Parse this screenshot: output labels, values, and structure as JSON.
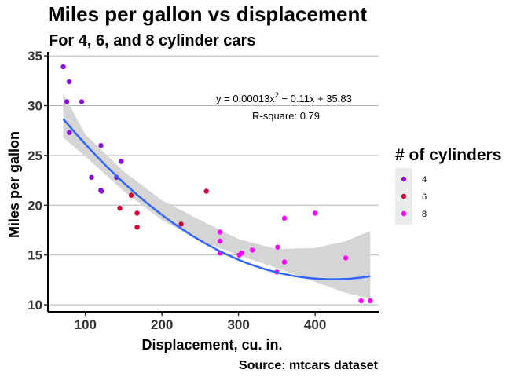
{
  "chart_data": {
    "type": "scatter",
    "title": "Miles per gallon vs displacement",
    "subtitle": "For 4, 6, and 8 cylinder cars",
    "xlabel": "Displacement, cu. in.",
    "ylabel": "Miles per gallon",
    "caption": "Source: mtcars dataset",
    "xlim": [
      51,
      483
    ],
    "ylim": [
      9.3,
      35.4
    ],
    "xticks": [
      100,
      200,
      300,
      400
    ],
    "yticks": [
      10,
      15,
      20,
      25,
      30,
      35
    ],
    "grid": "horizontal",
    "legend": {
      "title": "# of cylinders",
      "placement": "right",
      "entries": [
        {
          "label": "4",
          "color": "#8a0ee6"
        },
        {
          "label": "6",
          "color": "#cc0033"
        },
        {
          "label": "8",
          "color": "#ff00ff"
        }
      ]
    },
    "annotation": {
      "equation_plain": "y = 0.00013x² − 0.11x + 35.83",
      "r_square": "R-square: 0.79"
    },
    "fit": {
      "type": "quadratic",
      "a": 0.00013,
      "b": -0.11,
      "c": 35.83,
      "x_range": [
        71.1,
        472
      ],
      "color": "#3366ff",
      "band_color": "#d0d0d0",
      "band": [
        {
          "x": 71,
          "lo": 26.8,
          "hi": 31.2
        },
        {
          "x": 100,
          "lo": 24.9,
          "hi": 27.1
        },
        {
          "x": 150,
          "lo": 21.4,
          "hi": 23.4
        },
        {
          "x": 200,
          "lo": 18.5,
          "hi": 20.5
        },
        {
          "x": 250,
          "lo": 16.4,
          "hi": 18.5
        },
        {
          "x": 300,
          "lo": 15.0,
          "hi": 16.6
        },
        {
          "x": 350,
          "lo": 13.7,
          "hi": 15.6
        },
        {
          "x": 400,
          "lo": 12.3,
          "hi": 15.7
        },
        {
          "x": 440,
          "lo": 11.2,
          "hi": 16.4
        },
        {
          "x": 472,
          "lo": 10.6,
          "hi": 17.4
        }
      ]
    },
    "series": [
      {
        "name": "4",
        "color": "#8a0ee6",
        "points": [
          [
            71.1,
            33.9
          ],
          [
            75.7,
            30.4
          ],
          [
            78.7,
            32.4
          ],
          [
            79.0,
            27.3
          ],
          [
            95.1,
            30.4
          ],
          [
            108.0,
            22.8
          ],
          [
            120.1,
            21.5
          ],
          [
            120.3,
            26.0
          ],
          [
            121.0,
            21.4
          ],
          [
            140.8,
            22.8
          ],
          [
            146.7,
            24.4
          ]
        ]
      },
      {
        "name": "6",
        "color": "#cc0033",
        "points": [
          [
            145.0,
            19.7
          ],
          [
            160.0,
            21.0
          ],
          [
            160.0,
            21.0
          ],
          [
            167.6,
            19.2
          ],
          [
            167.6,
            17.8
          ],
          [
            225.0,
            18.1
          ],
          [
            258.0,
            21.4
          ]
        ]
      },
      {
        "name": "8",
        "color": "#ff00ff",
        "points": [
          [
            275.8,
            16.4
          ],
          [
            275.8,
            17.3
          ],
          [
            275.8,
            15.2
          ],
          [
            301.0,
            15.0
          ],
          [
            304.0,
            15.2
          ],
          [
            318.0,
            15.5
          ],
          [
            350.0,
            13.3
          ],
          [
            351.0,
            15.8
          ],
          [
            360.0,
            18.7
          ],
          [
            360.0,
            14.3
          ],
          [
            400.0,
            19.2
          ],
          [
            440.0,
            14.7
          ],
          [
            460.0,
            10.4
          ],
          [
            472.0,
            10.4
          ]
        ]
      }
    ]
  }
}
